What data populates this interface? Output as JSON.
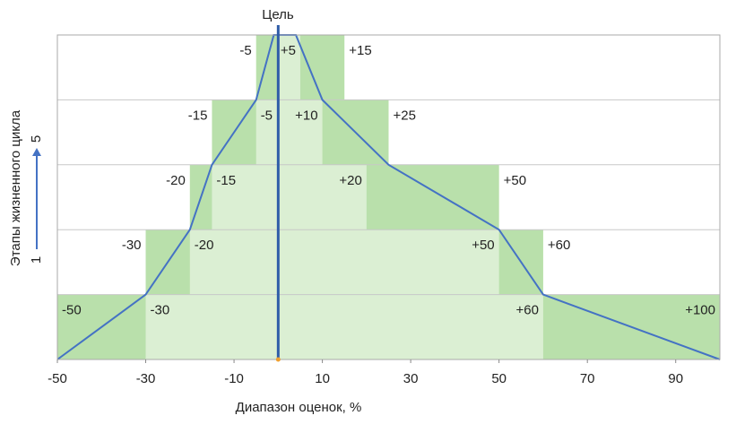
{
  "chart_data": {
    "type": "cone",
    "title": "Цель",
    "x_label": "Диапазон оценок, %",
    "y_label": "Этапы жизненного цикла",
    "y_range_labels": {
      "from": "1",
      "to": "5"
    },
    "xlim": [
      -50,
      100
    ],
    "xticks": [
      -50,
      -30,
      -10,
      10,
      30,
      50,
      70,
      90
    ],
    "ylim": [
      0,
      5
    ],
    "target": 0,
    "grid": true,
    "outer_color": "#b9e0ab",
    "inner_color": "#dbefd3",
    "line_color": "#4472c4",
    "target_color": "#2f5ca8",
    "rows": [
      {
        "outer": [
          -50,
          100
        ],
        "outer_labels": [
          "-50",
          "+100"
        ],
        "inner": [
          -30,
          60
        ],
        "inner_labels": [
          "-30",
          "+60"
        ]
      },
      {
        "outer": [
          -30,
          60
        ],
        "outer_labels": [
          "-30",
          "+60"
        ],
        "inner": [
          -20,
          50
        ],
        "inner_labels": [
          "-20",
          "+50"
        ]
      },
      {
        "outer": [
          -20,
          50
        ],
        "outer_labels": [
          "-20",
          "+50"
        ],
        "inner": [
          -15,
          20
        ],
        "inner_labels": [
          "-15",
          "+20"
        ]
      },
      {
        "outer": [
          -15,
          25
        ],
        "outer_labels": [
          "-15",
          "+25"
        ],
        "inner": [
          -5,
          10
        ],
        "inner_labels": [
          "-5",
          "+10"
        ]
      },
      {
        "outer": [
          -5,
          15
        ],
        "outer_labels": [
          "-5",
          "+15"
        ],
        "inner": [
          0,
          5
        ],
        "inner_labels": [
          null,
          "+5"
        ]
      }
    ],
    "line": {
      "x": [
        -50,
        -30,
        -20,
        -15,
        -5,
        -1,
        4,
        10,
        25,
        50,
        60,
        100
      ],
      "y": [
        0,
        1,
        2,
        3,
        4,
        5,
        5,
        4,
        3,
        2,
        1,
        0
      ]
    }
  }
}
